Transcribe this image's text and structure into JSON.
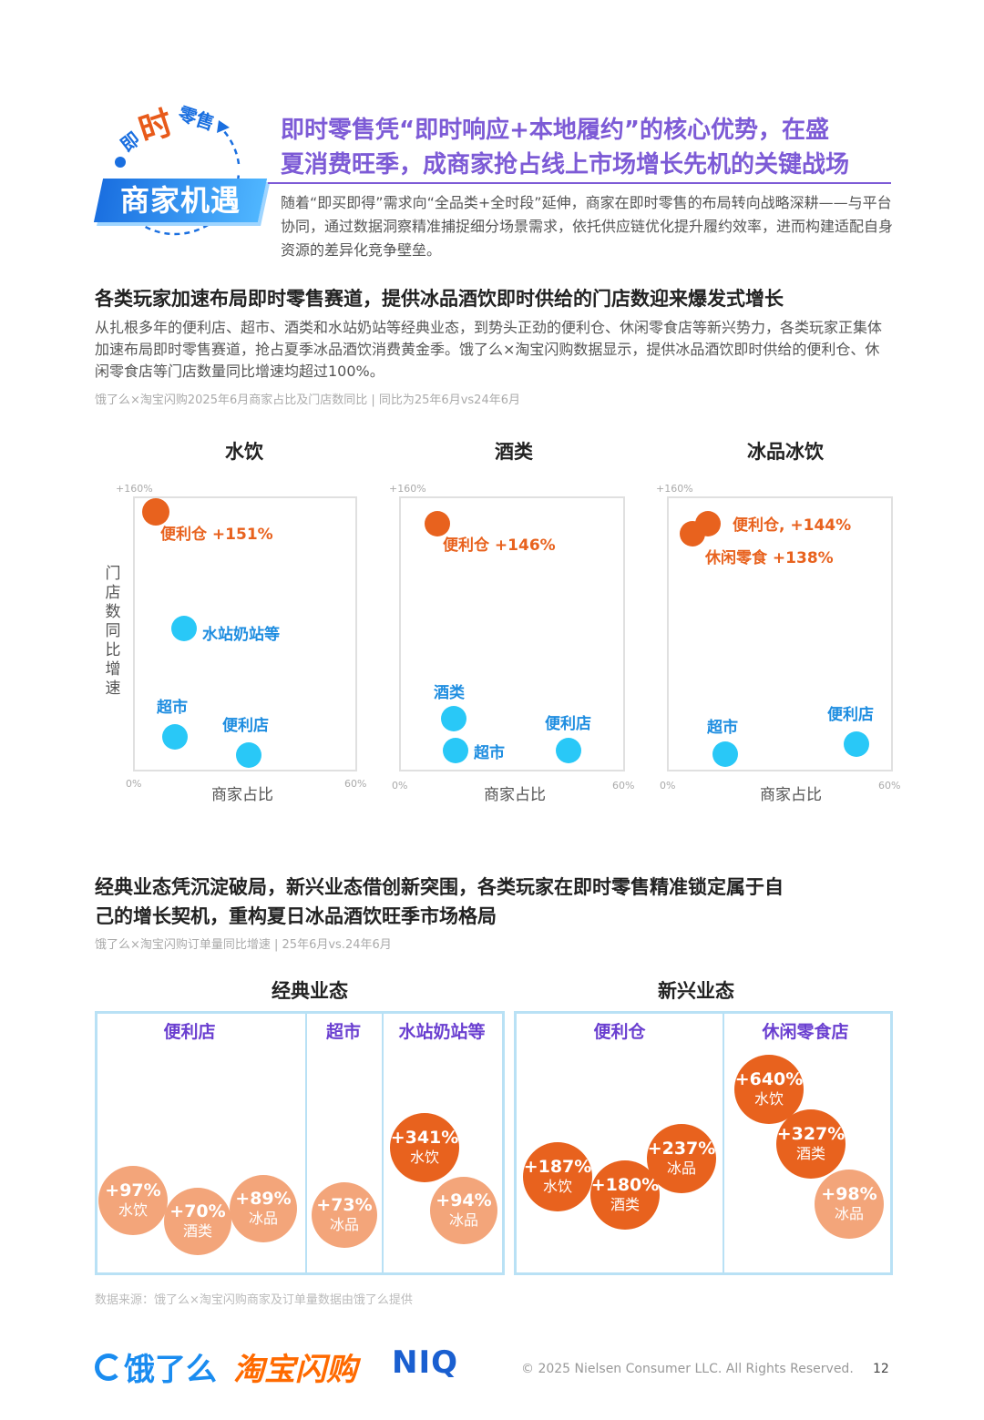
{
  "badge": {
    "top_small_left": "即",
    "top_big": "时",
    "top_small_right": "零售",
    "main": "商家机遇"
  },
  "headline": {
    "line1": "即时零售凭“即时响应+本地履约”的核心优势，在盛",
    "line2": "夏消费旺季，成商家抢占线上市场增长先机的关键战场",
    "intro": "随着“即买即得”需求向“全品类+全时段”延伸，商家在即时零售的布局转向战略深耕——与平台协同，通过数据洞察精准捕捉细分场景需求，依托供应链优化提升履约效率，进而构建适配自身资源的差异化竞争壁垒。"
  },
  "section1": {
    "title": "各类玩家加速布局即时零售赛道，提供冰品酒饮即时供给的门店数迎来爆发式增长",
    "body": "从扎根多年的便利店、超市、酒类和水站奶站等经典业态，到势头正劲的便利仓、休闲零食店等新兴势力，各类玩家正集体加速布局即时零售赛道，抢占夏季冰品酒饮消费黄金季。饿了么×淘宝闪购数据显示，提供冰品酒饮即时供给的便利仓、休闲零食店等门店数量同比增速均超过100%。",
    "source": "饿了么×淘宝闪购2025年6月商家占比及门店数同比 | 同比为25年6月vs24年6月"
  },
  "chart_data": [
    {
      "type": "scatter",
      "title": "水饮",
      "xlabel": "商家占比",
      "ylabel": "门店数同比增速",
      "x_tick_min": "0%",
      "x_tick_max": "60%",
      "y_tick_max": "+160%",
      "xlim": [
        0,
        60
      ],
      "ylim": [
        0,
        160
      ],
      "points": [
        {
          "label": "便利仓 +151%",
          "x": 3,
          "y": 151,
          "color": "#e8621e"
        },
        {
          "label": "水站奶站等",
          "x": 14,
          "y": 87,
          "color": "#29c8f7"
        },
        {
          "label": "超市",
          "x": 11,
          "y": 23,
          "color": "#29c8f7"
        },
        {
          "label": "便利店",
          "x": 30,
          "y": 14,
          "color": "#29c8f7"
        }
      ]
    },
    {
      "type": "scatter",
      "title": "酒类",
      "xlabel": "商家占比",
      "x_tick_min": "0%",
      "x_tick_max": "60%",
      "y_tick_max": "+160%",
      "xlim": [
        0,
        60
      ],
      "ylim": [
        0,
        160
      ],
      "points": [
        {
          "label": "便利仓 +146%",
          "x": 9,
          "y": 146,
          "color": "#e8621e"
        },
        {
          "label": "酒类",
          "x": 13,
          "y": 36,
          "color": "#29c8f7"
        },
        {
          "label": "超市",
          "x": 13,
          "y": 19,
          "color": "#29c8f7"
        },
        {
          "label": "便利店",
          "x": 45,
          "y": 19,
          "color": "#29c8f7"
        }
      ]
    },
    {
      "type": "scatter",
      "title": "冰品冰饮",
      "xlabel": "商家占比",
      "x_tick_min": "0%",
      "x_tick_max": "60%",
      "y_tick_max": "+160%",
      "xlim": [
        0,
        60
      ],
      "ylim": [
        0,
        160
      ],
      "points": [
        {
          "label": "便利仓, +144%",
          "x": 10,
          "y": 144,
          "color": "#e8621e"
        },
        {
          "label": "休闲零食 +138%",
          "x": 7,
          "y": 138,
          "color": "#e8621e"
        },
        {
          "label": "超市",
          "x": 15,
          "y": 16,
          "color": "#29c8f7"
        },
        {
          "label": "便利店",
          "x": 50,
          "y": 22,
          "color": "#29c8f7"
        }
      ]
    }
  ],
  "section2": {
    "title_line1": "经典业态凭沉淀破局，新兴业态借创新突围，各类玩家在即时零售精准锁定属于自",
    "title_line2": "己的增长契机，重构夏日冰品酒饮旺季市场格局",
    "source": "饿了么×淘宝闪购订单量同比增速 | 25年6月vs.24年6月"
  },
  "bubbles": {
    "classic_title": "经典业态",
    "emerging_title": "新兴业态",
    "classic_cols": [
      "便利店",
      "超市",
      "水站奶站等"
    ],
    "emerging_cols": [
      "便利仓",
      "休闲零食店"
    ],
    "items": [
      {
        "pct": "+97%",
        "cat": "水饮",
        "value": 97
      },
      {
        "pct": "+70%",
        "cat": "酒类",
        "value": 70
      },
      {
        "pct": "+89%",
        "cat": "冰品",
        "value": 89
      },
      {
        "pct": "+73%",
        "cat": "冰品",
        "value": 73
      },
      {
        "pct": "+341%",
        "cat": "水饮",
        "value": 341
      },
      {
        "pct": "+94%",
        "cat": "冰品",
        "value": 94
      },
      {
        "pct": "+187%",
        "cat": "水饮",
        "value": 187
      },
      {
        "pct": "+180%",
        "cat": "酒类",
        "value": 180
      },
      {
        "pct": "+237%",
        "cat": "冰品",
        "value": 237
      },
      {
        "pct": "+640%",
        "cat": "水饮",
        "value": 640
      },
      {
        "pct": "+327%",
        "cat": "酒类",
        "value": 327
      },
      {
        "pct": "+98%",
        "cat": "冰品",
        "value": 98
      }
    ]
  },
  "footer": {
    "source": "数据来源：饿了么×淘宝闪购商家及订单量数据由饿了么提供",
    "logo_eleme": "饿了么",
    "logo_taobao": "淘宝闪购",
    "logo_niq": "NIQ",
    "copyright": "© 2025 Nielsen Consumer LLC. All Rights Reserved.",
    "page": "12"
  },
  "colors": {
    "accent_purple": "#7d5bd6",
    "orange": "#e8621e",
    "light_orange": "#f3a57a",
    "cyan": "#29c8f7",
    "blue": "#1e8de0"
  }
}
